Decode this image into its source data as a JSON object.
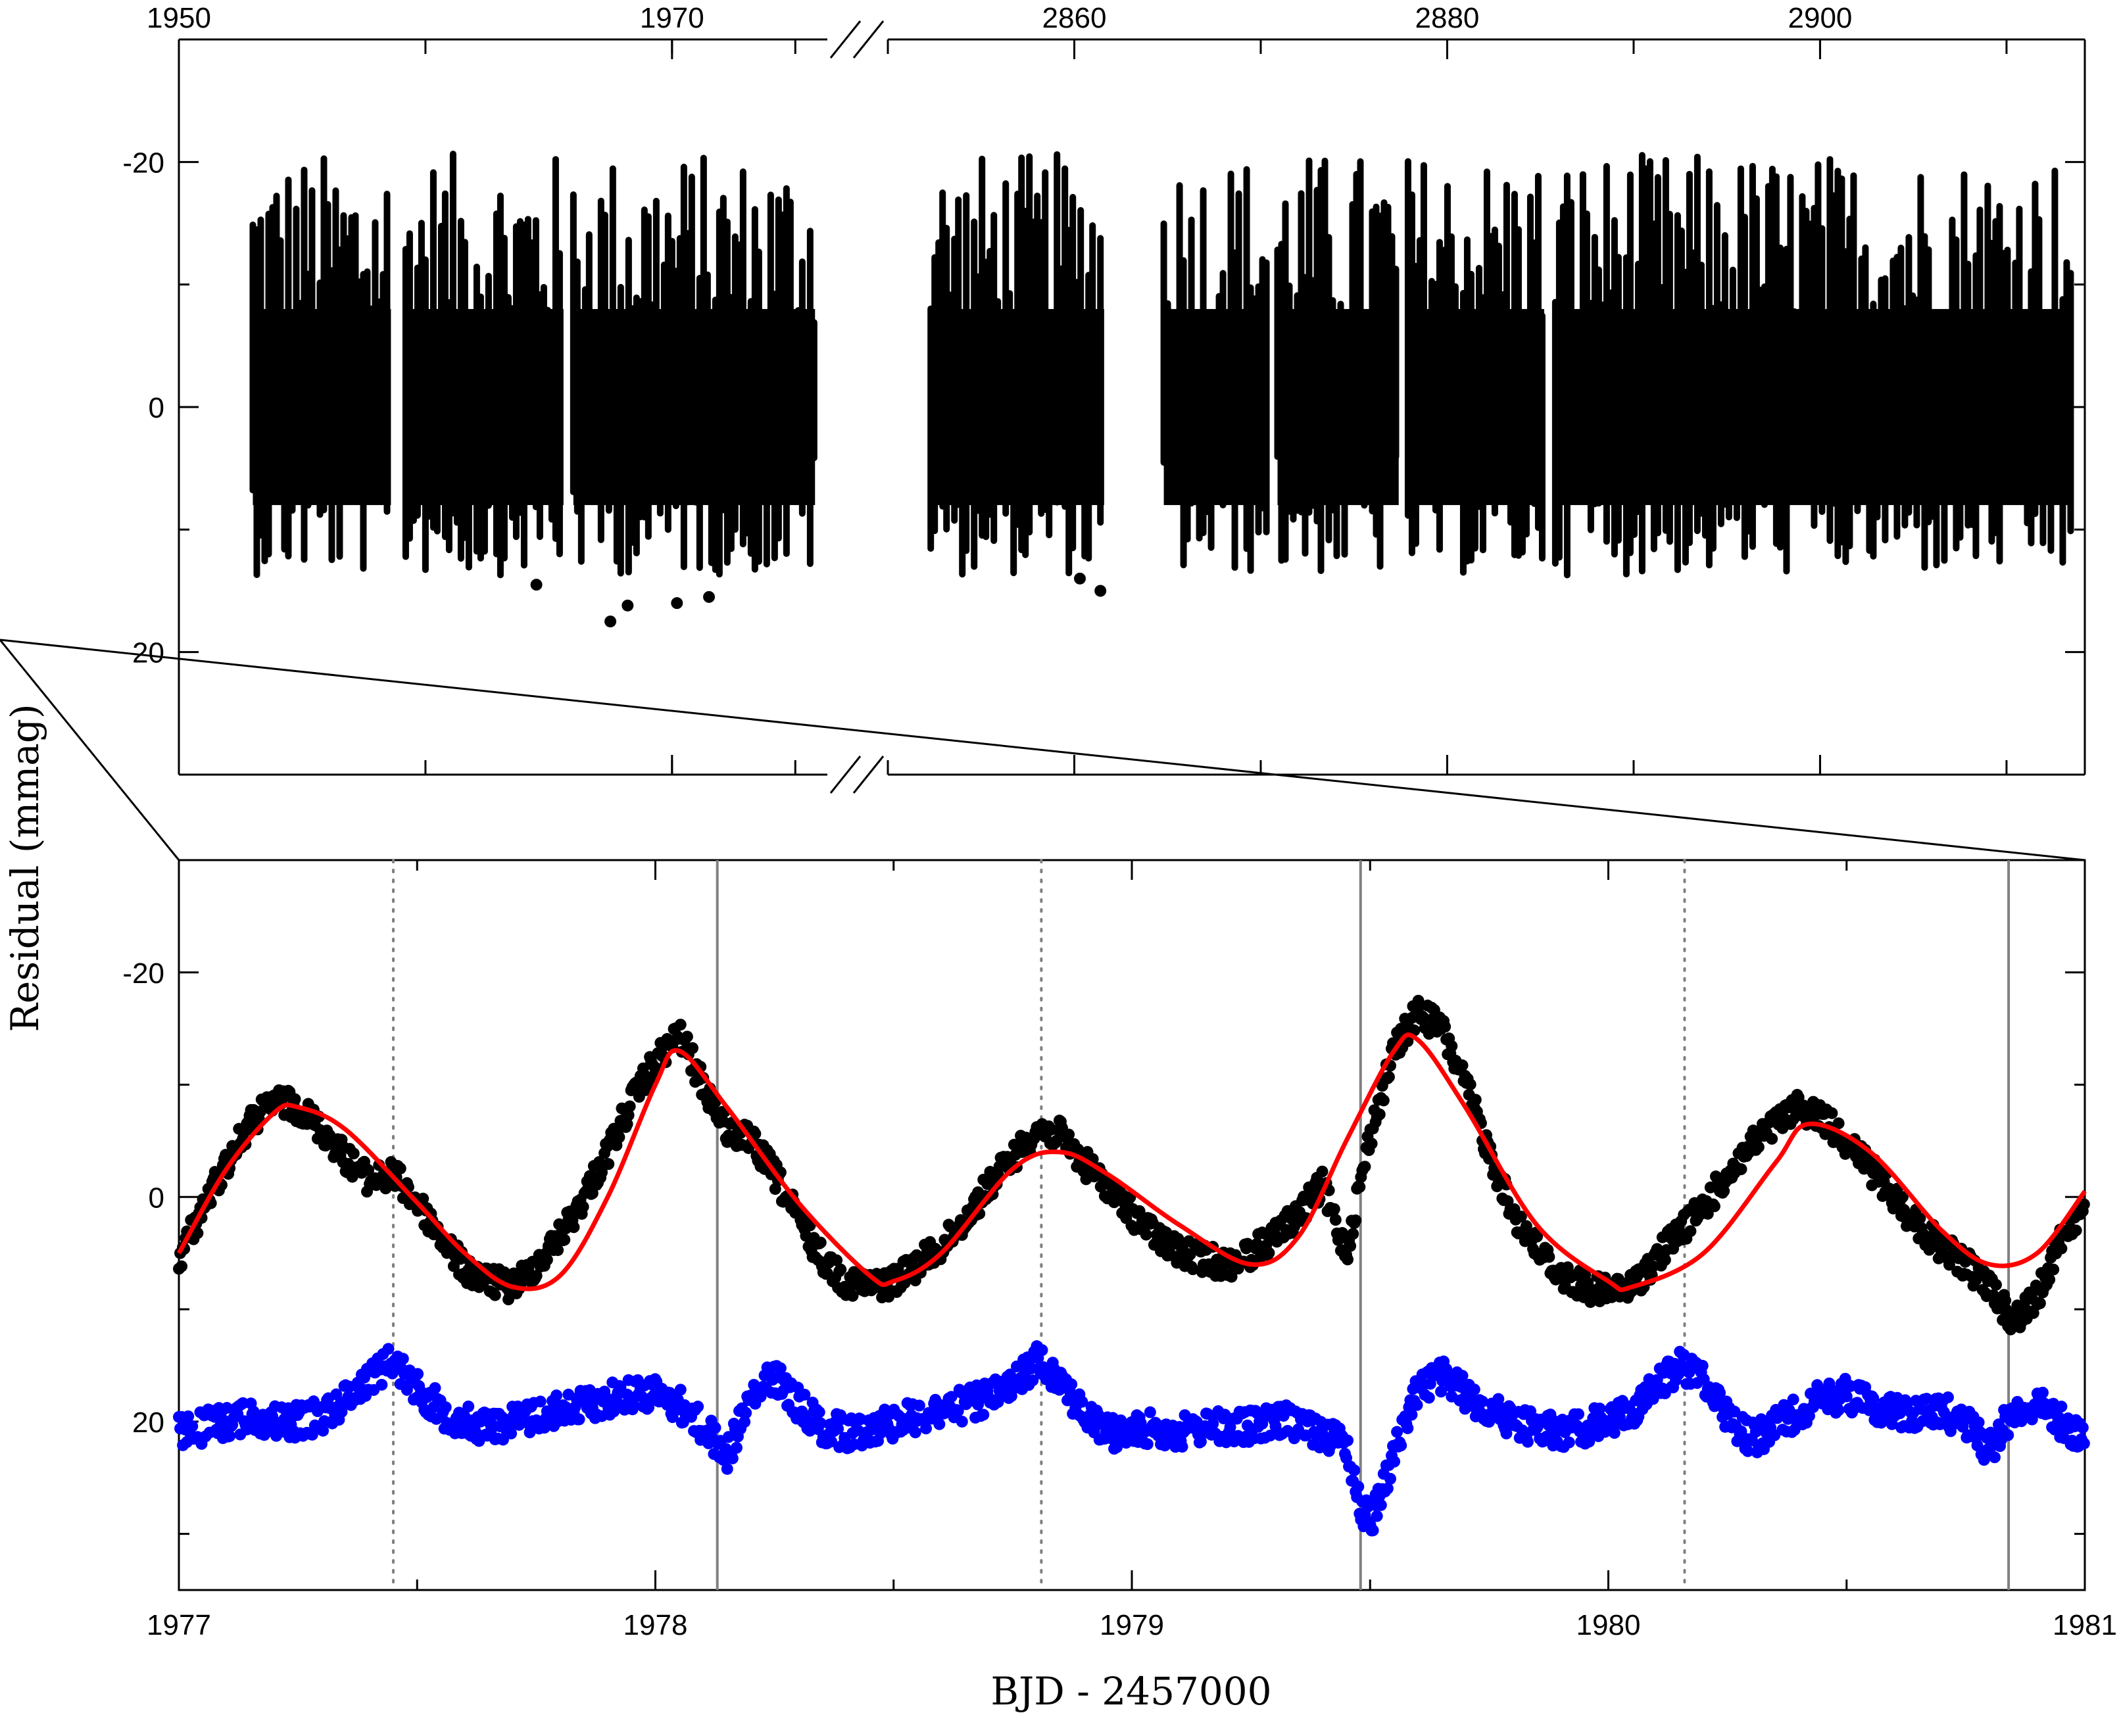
{
  "figure": {
    "ylabel": "Residual (mmag)",
    "xlabel": "BJD - 2457000"
  },
  "colors": {
    "observed": "#000000",
    "model": "#ff0000",
    "residual": "#0000ff",
    "highlight_box": "#ff00ff",
    "vlines": "#808080"
  },
  "chart_data": [
    {
      "type": "scatter",
      "panel": "top",
      "title": "",
      "x_axis": "top",
      "broken_axis": true,
      "segments": [
        {
          "xlim": [
            1950,
            1976.3
          ],
          "xticks": [
            1950,
            1970
          ],
          "xminor": [
            1960,
            1970,
            1975
          ],
          "data_range": [
            1953.0,
            1975.8
          ]
        },
        {
          "xlim": [
            2850,
            2914.2
          ],
          "xticks": [
            2860,
            2880,
            2900
          ],
          "xminor": [
            2850,
            2860,
            2870,
            2880,
            2890,
            2900,
            2910
          ],
          "data_range": [
            2852.3,
            2913.5
          ]
        }
      ],
      "ylim": [
        -30,
        30
      ],
      "yticks": [
        -20,
        0,
        20
      ],
      "yminor": [
        -10,
        10
      ],
      "y_inverted": true,
      "series": [
        {
          "color": "#000000",
          "envelope_y": [
            -21,
            18
          ]
        }
      ],
      "highlight": {
        "x_range": [
          1977,
          1981
        ],
        "y_range": [
          -22,
          19
        ],
        "color": "#ff00ff"
      },
      "grid": false
    },
    {
      "type": "scatter",
      "panel": "bottom",
      "title": "",
      "xlim": [
        1977,
        1981
      ],
      "xticks": [
        1977,
        1978,
        1979,
        1980,
        1981
      ],
      "ylim": [
        -30,
        35
      ],
      "yticks": [
        -20,
        0,
        20
      ],
      "yminor": [
        -10,
        10,
        30
      ],
      "y_inverted": true,
      "grid": false,
      "vlines_dotted": [
        1977.45,
        1978.81,
        1980.16
      ],
      "vlines_solid": [
        1978.13,
        1979.48,
        1980.84
      ],
      "series": [
        {
          "kind": "line",
          "color": "#ff0000",
          "x": [
            1977.0,
            1977.1,
            1977.2,
            1977.25,
            1977.35,
            1977.5,
            1977.6,
            1977.7,
            1977.8,
            1977.9,
            1978.0,
            1978.05,
            1978.15,
            1978.3,
            1978.45,
            1978.5,
            1978.6,
            1978.75,
            1978.85,
            1978.95,
            1979.1,
            1979.25,
            1979.35,
            1979.45,
            1979.55,
            1979.6,
            1979.7,
            1979.85,
            1980.0,
            1980.05,
            1980.2,
            1980.35,
            1980.42,
            1980.55,
            1980.7,
            1980.8,
            1980.9,
            1981.0
          ],
          "y": [
            5.0,
            -2.5,
            -7.5,
            -8.0,
            -6.0,
            0.5,
            5.0,
            8.0,
            7.0,
            0.0,
            -10.0,
            -13.0,
            -8.0,
            0.5,
            7.0,
            7.5,
            5.0,
            -2.5,
            -4.0,
            -2.0,
            2.5,
            6.0,
            3.5,
            -5.0,
            -13.0,
            -14.0,
            -8.0,
            2.5,
            7.5,
            8.0,
            5.0,
            -3.0,
            -6.5,
            -4.0,
            3.0,
            6.0,
            5.0,
            -0.5
          ]
        },
        {
          "kind": "points",
          "color": "#000000",
          "x": [
            1977.0,
            1977.05,
            1977.1,
            1977.15,
            1977.2,
            1977.25,
            1977.3,
            1977.35,
            1977.4,
            1977.45,
            1977.5,
            1977.55,
            1977.6,
            1977.65,
            1977.7,
            1977.75,
            1977.8,
            1977.85,
            1977.9,
            1977.95,
            1978.0,
            1978.05,
            1978.1,
            1978.15,
            1978.2,
            1978.25,
            1978.3,
            1978.35,
            1978.4,
            1978.45,
            1978.5,
            1978.55,
            1978.6,
            1978.65,
            1978.7,
            1978.75,
            1978.8,
            1978.85,
            1978.9,
            1978.95,
            1979.0,
            1979.05,
            1979.1,
            1979.15,
            1979.2,
            1979.25,
            1979.3,
            1979.35,
            1979.4,
            1979.45,
            1979.5,
            1979.55,
            1979.6,
            1979.65,
            1979.7,
            1979.75,
            1979.8,
            1979.85,
            1979.9,
            1979.95,
            1980.0,
            1980.05,
            1980.1,
            1980.15,
            1980.2,
            1980.25,
            1980.3,
            1980.35,
            1980.4,
            1980.45,
            1980.5,
            1980.55,
            1980.6,
            1980.65,
            1980.7,
            1980.75,
            1980.8,
            1980.85,
            1980.9,
            1980.95,
            1981.0
          ],
          "y": [
            5.5,
            1.0,
            -3.0,
            -6.5,
            -8.5,
            -8.0,
            -6.0,
            -3.5,
            -1.5,
            -2.0,
            0.5,
            3.5,
            6.5,
            7.5,
            8.0,
            6.0,
            3.5,
            0.0,
            -4.0,
            -8.5,
            -12.0,
            -14.5,
            -10.0,
            -6.0,
            -5.0,
            -2.0,
            2.0,
            5.5,
            7.5,
            8.0,
            7.5,
            6.0,
            4.5,
            2.0,
            -1.0,
            -3.5,
            -6.0,
            -5.5,
            -3.0,
            -1.0,
            1.5,
            3.5,
            5.0,
            5.5,
            6.0,
            5.0,
            3.5,
            1.5,
            -1.0,
            5.0,
            -5.5,
            -13.0,
            -16.5,
            -15.0,
            -10.0,
            -4.0,
            1.5,
            4.5,
            7.0,
            8.0,
            8.5,
            8.0,
            5.5,
            3.0,
            1.0,
            -2.0,
            -4.5,
            -6.5,
            -8.0,
            -7.0,
            -5.0,
            -2.5,
            0.0,
            2.5,
            4.5,
            6.0,
            8.0,
            11.0,
            9.0,
            3.5,
            1.0
          ]
        },
        {
          "kind": "points",
          "color": "#0000ff",
          "x": [
            1977.0,
            1977.05,
            1977.1,
            1977.15,
            1977.2,
            1977.25,
            1977.3,
            1977.35,
            1977.4,
            1977.45,
            1977.5,
            1977.55,
            1977.6,
            1977.65,
            1977.7,
            1977.75,
            1977.8,
            1977.85,
            1977.9,
            1977.95,
            1978.0,
            1978.05,
            1978.1,
            1978.15,
            1978.2,
            1978.25,
            1978.3,
            1978.35,
            1978.4,
            1978.45,
            1978.5,
            1978.55,
            1978.6,
            1978.65,
            1978.7,
            1978.75,
            1978.8,
            1978.85,
            1978.9,
            1978.95,
            1979.0,
            1979.05,
            1979.1,
            1979.15,
            1979.2,
            1979.25,
            1979.3,
            1979.35,
            1979.4,
            1979.45,
            1979.48,
            1979.5,
            1979.55,
            1979.6,
            1979.65,
            1979.7,
            1979.75,
            1979.8,
            1979.85,
            1979.9,
            1979.95,
            1980.0,
            1980.05,
            1980.1,
            1980.15,
            1980.2,
            1980.25,
            1980.3,
            1980.35,
            1980.4,
            1980.45,
            1980.5,
            1980.55,
            1980.6,
            1980.65,
            1980.7,
            1980.75,
            1980.8,
            1980.85,
            1980.9,
            1980.95,
            1981.0
          ],
          "y": [
            21.0,
            20.5,
            20.0,
            19.5,
            20.0,
            20.0,
            19.5,
            18.0,
            16.0,
            14.5,
            17.0,
            19.0,
            20.0,
            20.5,
            20.0,
            19.5,
            19.0,
            18.5,
            18.0,
            17.5,
            17.5,
            18.5,
            20.5,
            23.0,
            18.0,
            16.0,
            18.5,
            20.5,
            21.0,
            20.5,
            20.0,
            19.5,
            19.0,
            18.5,
            18.0,
            17.0,
            14.5,
            16.0,
            19.5,
            21.0,
            21.0,
            20.5,
            21.0,
            20.5,
            20.5,
            20.5,
            20.0,
            20.0,
            21.0,
            22.0,
            27.5,
            29.0,
            23.0,
            17.0,
            16.0,
            17.5,
            19.0,
            20.0,
            20.5,
            21.0,
            20.5,
            20.0,
            19.0,
            17.0,
            15.0,
            16.0,
            19.5,
            21.5,
            20.5,
            19.0,
            18.0,
            17.5,
            18.5,
            19.0,
            19.5,
            19.0,
            20.0,
            22.5,
            19.0,
            18.5,
            20.0,
            21.5
          ]
        }
      ]
    }
  ]
}
